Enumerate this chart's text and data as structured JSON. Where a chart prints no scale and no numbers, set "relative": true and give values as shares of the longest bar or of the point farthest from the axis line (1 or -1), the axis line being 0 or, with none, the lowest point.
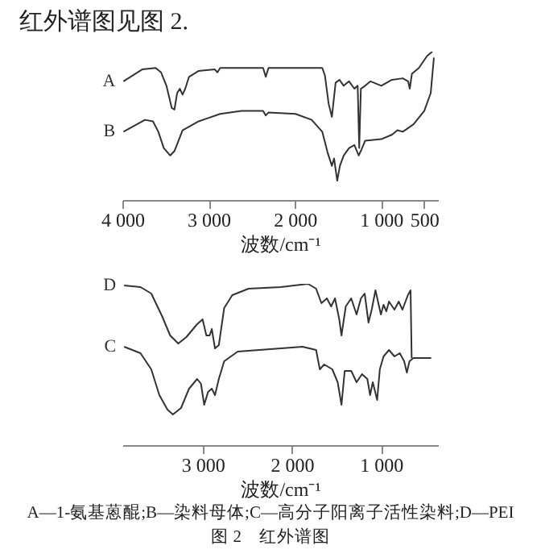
{
  "chart_data": [
    {
      "type": "line",
      "relative": true,
      "xlabel": "波数/cm⁻¹",
      "xlim": [
        4000,
        340
      ],
      "xticks": [
        {
          "value": 4000,
          "label": "4 000"
        },
        {
          "value": 3000,
          "label": "3 000"
        },
        {
          "value": 2000,
          "label": "2 000"
        },
        {
          "value": 1000,
          "label": "1 000"
        },
        500
      ],
      "tick_labels": "x",
      "annotations": [
        "红外谱图见图 2."
      ],
      "series": [
        {
          "name": "A",
          "color": "#333333",
          "x": [
            3988,
            3770,
            3614,
            3551,
            3489,
            3427,
            3396,
            3365,
            3333,
            3302,
            3271,
            3227,
            3115,
            2928,
            2897,
            2866,
            2368,
            2337,
            2305,
            1682,
            1651,
            1608,
            1570,
            1527,
            1483,
            1433,
            1371,
            1309,
            1271,
            1253,
            1234,
            1184,
            1122,
            997,
            873,
            748,
            686,
            667,
            642,
            561,
            467,
            405
          ],
          "values": [
            0.8,
            0.88,
            0.89,
            0.86,
            0.77,
            0.62,
            0.61,
            0.72,
            0.75,
            0.71,
            0.75,
            0.83,
            0.87,
            0.88,
            0.86,
            0.89,
            0.89,
            0.83,
            0.89,
            0.89,
            0.84,
            0.65,
            0.56,
            0.79,
            0.81,
            0.77,
            0.8,
            0.75,
            0.77,
            0.35,
            0.75,
            0.77,
            0.8,
            0.77,
            0.81,
            0.82,
            0.8,
            0.75,
            0.85,
            0.89,
            0.97,
            1.0
          ]
        },
        {
          "name": "B",
          "color": "#333333",
          "x": [
            3988,
            3894,
            3738,
            3645,
            3583,
            3520,
            3445,
            3396,
            3302,
            3115,
            2866,
            2617,
            2368,
            2337,
            2305,
            1992,
            1805,
            1682,
            1620,
            1570,
            1545,
            1508,
            1477,
            1433,
            1371,
            1309,
            1259,
            1234,
            1184,
            997,
            873,
            810,
            748,
            623,
            499,
            424,
            387
          ],
          "values": [
            0.46,
            0.49,
            0.54,
            0.53,
            0.46,
            0.35,
            0.3,
            0.33,
            0.47,
            0.53,
            0.58,
            0.6,
            0.6,
            0.57,
            0.59,
            0.58,
            0.54,
            0.46,
            0.32,
            0.23,
            0.28,
            0.13,
            0.23,
            0.3,
            0.35,
            0.37,
            0.3,
            0.33,
            0.4,
            0.41,
            0.44,
            0.47,
            0.46,
            0.51,
            0.6,
            0.72,
            0.96
          ]
        }
      ]
    },
    {
      "type": "line",
      "relative": true,
      "xlabel": "波数/cm⁻¹",
      "xlim": [
        3900,
        360
      ],
      "xticks": [
        {
          "value": 3000,
          "label": "3 000"
        },
        {
          "value": 2000,
          "label": "2 000"
        },
        {
          "value": 1000,
          "label": "1 000"
        }
      ],
      "tick_labels": "x",
      "annotations": [
        "A—1-氨基蒽醌;B—染料母体;C—高分子阳离子活性染料;D—PEI",
        "图 2　红外谱图"
      ],
      "series": [
        {
          "name": "D",
          "color": "#333333",
          "x": [
            3880,
            3697,
            3576,
            3455,
            3364,
            3273,
            3182,
            3061,
            3000,
            2958,
            2921,
            2897,
            2861,
            2818,
            2758,
            2667,
            2485,
            2121,
            1818,
            1727,
            1667,
            1606,
            1558,
            1515,
            1467,
            1442,
            1394,
            1333,
            1273,
            1224,
            1182,
            1139,
            1103,
            1061,
            1000,
            970,
            939,
            909,
            848,
            800,
            758,
            697,
            667,
            655
          ],
          "values": [
            0.99,
            0.98,
            0.94,
            0.8,
            0.68,
            0.63,
            0.67,
            0.75,
            0.78,
            0.68,
            0.68,
            0.72,
            0.6,
            0.62,
            0.85,
            0.93,
            0.97,
            0.98,
            1.0,
            0.97,
            0.88,
            0.91,
            0.86,
            0.91,
            0.78,
            0.68,
            0.86,
            0.91,
            0.81,
            0.91,
            0.94,
            0.76,
            0.84,
            0.96,
            0.81,
            0.87,
            0.83,
            0.89,
            0.84,
            0.89,
            0.84,
            0.93,
            0.96,
            0.54
          ]
        },
        {
          "name": "C",
          "color": "#333333",
          "x": [
            3880,
            3697,
            3576,
            3485,
            3394,
            3333,
            3242,
            3152,
            3061,
            3018,
            2982,
            2939,
            2897,
            2861,
            2818,
            2758,
            2606,
            2121,
            1879,
            1727,
            1685,
            1636,
            1545,
            1485,
            1442,
            1406,
            1333,
            1273,
            1212,
            1152,
            1121,
            1091,
            1042,
            1012,
            970,
            909,
            848,
            788,
            739,
            709,
            679,
            636,
            436
          ],
          "values": [
            0.61,
            0.57,
            0.47,
            0.31,
            0.22,
            0.19,
            0.23,
            0.35,
            0.41,
            0.38,
            0.25,
            0.33,
            0.35,
            0.31,
            0.41,
            0.52,
            0.58,
            0.6,
            0.61,
            0.59,
            0.47,
            0.5,
            0.47,
            0.39,
            0.25,
            0.46,
            0.46,
            0.39,
            0.44,
            0.41,
            0.31,
            0.39,
            0.28,
            0.47,
            0.55,
            0.59,
            0.55,
            0.57,
            0.52,
            0.45,
            0.52,
            0.54,
            0.54
          ]
        }
      ]
    }
  ]
}
